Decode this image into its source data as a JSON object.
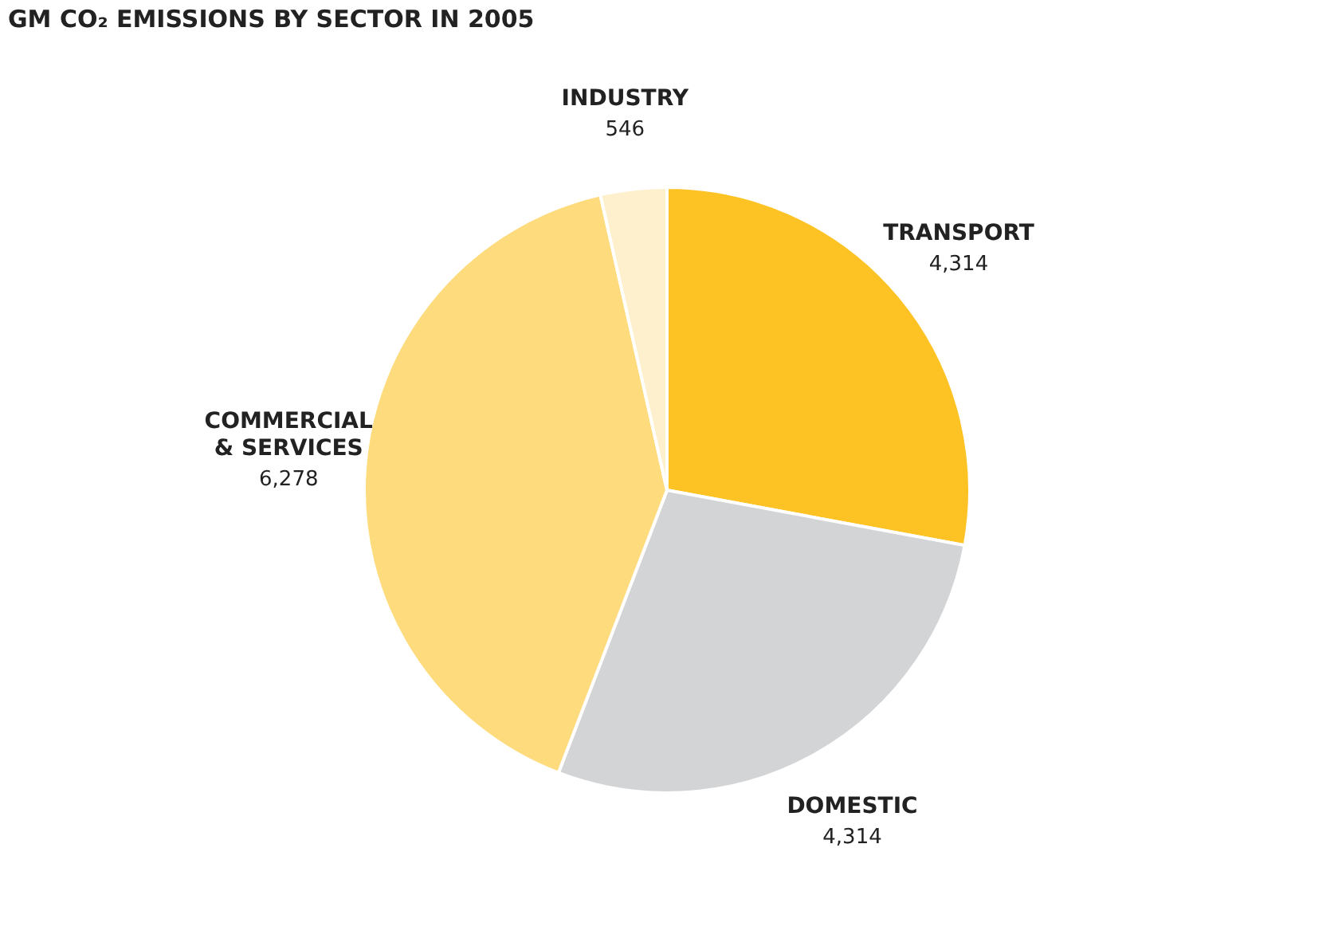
{
  "chart_data": {
    "type": "pie",
    "title": "GM CO₂ EMISSIONS BY SECTOR IN 2005",
    "categories": [
      "TRANSPORT",
      "DOMESTIC",
      "COMMERCIAL & SERVICES",
      "INDUSTRY"
    ],
    "values": [
      4314,
      4314,
      6278,
      546
    ],
    "colors": [
      "#fdc325",
      "#d3d4d6",
      "#fedb7c",
      "#fef0cc"
    ],
    "value_labels": [
      "4,314",
      "4,314",
      "6,278",
      "546"
    ],
    "legend": false
  }
}
